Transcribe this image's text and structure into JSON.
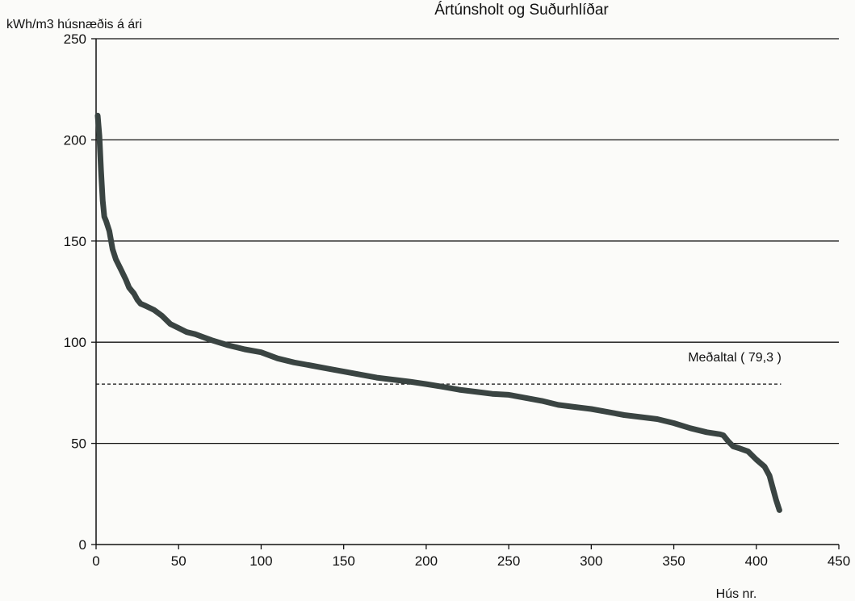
{
  "chart_data": {
    "type": "line",
    "title": "Ártúnsholt og Suðurhlíðar",
    "ylabel": "kWh/m3 húsnæðis á ári",
    "xlabel": "Hús nr.",
    "xlim": [
      0,
      450
    ],
    "ylim": [
      0,
      250
    ],
    "x_ticks": [
      "0",
      "50",
      "100",
      "150",
      "200",
      "250",
      "300",
      "350",
      "400",
      "450"
    ],
    "y_ticks": [
      "0",
      "50",
      "100",
      "150",
      "200",
      "250"
    ],
    "grid": "horizontal",
    "mean": {
      "label": "Meðaltal ( 79,3 )",
      "value": 79.3
    },
    "series": [
      {
        "color": "#3a4442",
        "x": [
          1,
          2,
          3,
          4,
          5,
          6,
          8,
          10,
          12,
          15,
          18,
          20,
          23,
          25,
          27,
          30,
          35,
          40,
          45,
          50,
          55,
          60,
          70,
          80,
          90,
          100,
          110,
          120,
          130,
          140,
          150,
          160,
          170,
          180,
          190,
          200,
          210,
          220,
          230,
          240,
          250,
          260,
          270,
          280,
          290,
          300,
          310,
          320,
          330,
          340,
          350,
          360,
          370,
          378,
          380,
          383,
          386,
          390,
          395,
          400,
          405,
          408,
          410,
          412,
          414
        ],
        "y": [
          212,
          202,
          185,
          170,
          162,
          160,
          155,
          146,
          141,
          136,
          131,
          127,
          124,
          121,
          119,
          118,
          116,
          113,
          109,
          107,
          105,
          104,
          101,
          98.5,
          96.5,
          95,
          92,
          90,
          88.5,
          87,
          85.5,
          84,
          82.5,
          81.5,
          80.5,
          79.3,
          78,
          76.5,
          75.5,
          74.5,
          74,
          72.5,
          71,
          69,
          68,
          67,
          65.5,
          64,
          63,
          62,
          60,
          57.5,
          55.5,
          54.5,
          54,
          51,
          48.5,
          47.5,
          46,
          42,
          38.5,
          34,
          28,
          22,
          17
        ]
      }
    ]
  }
}
